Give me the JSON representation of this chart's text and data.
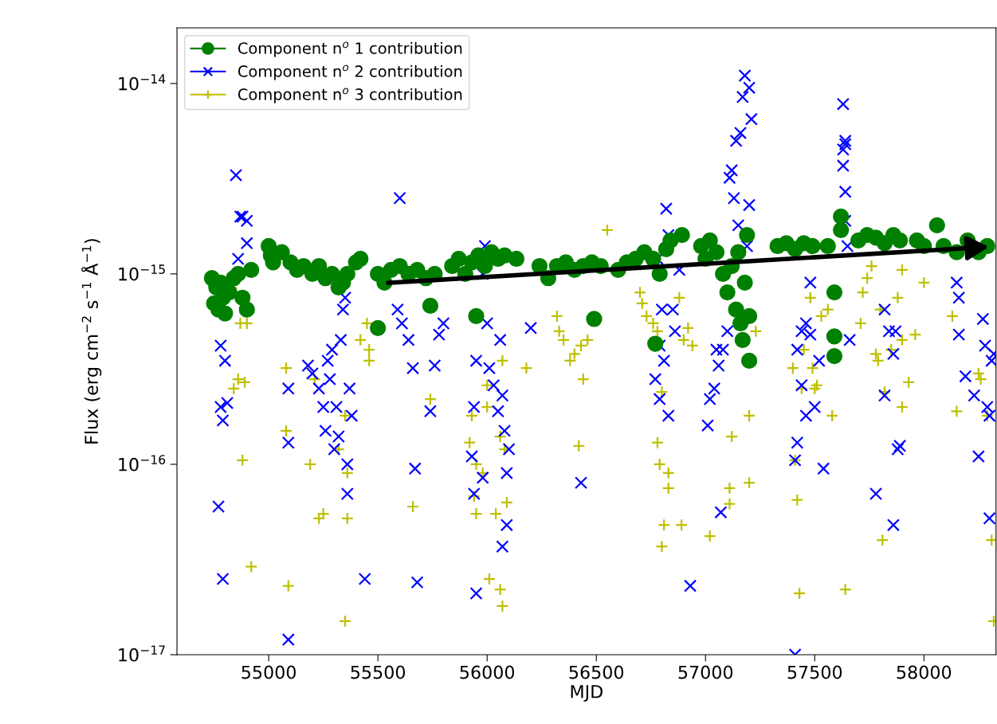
{
  "chart_data": {
    "type": "scatter",
    "xlabel": "MJD",
    "ylabel": "Flux (erg cm$^{−2}$ s$^{−1}$ Å$^{−1}$)",
    "log": "y",
    "legend": "top left",
    "grid": false,
    "xlim": [
      54580,
      58330
    ],
    "ylim": [
      1e-17,
      1.96e-14
    ],
    "xticks": [
      55000,
      55500,
      56000,
      56500,
      57000,
      57500,
      58000
    ],
    "yticks": [
      {
        "value": 1e-17,
        "label": "10$^{−17}$"
      },
      {
        "value": 1e-16,
        "label": "10$^{−16}$"
      },
      {
        "value": 1e-15,
        "label": "10$^{−15}$"
      },
      {
        "value": 1e-14,
        "label": "10$^{−14}$"
      }
    ],
    "series": [
      {
        "name": "Component n$^{o}$ 1 contribution",
        "color": "#008000",
        "marker": "circle",
        "x": [
          54740,
          54750,
          54760,
          54770,
          54780,
          54790,
          54800,
          54820,
          54840,
          54860,
          54880,
          54900,
          54920,
          55000,
          55010,
          55020,
          55060,
          55100,
          55130,
          55160,
          55200,
          55230,
          55260,
          55290,
          55320,
          55340,
          55360,
          55400,
          55420,
          55500,
          55530,
          55560,
          55600,
          55640,
          55680,
          55720,
          55760,
          55500,
          55740,
          55840,
          55870,
          55900,
          55930,
          55960,
          55990,
          56020,
          56050,
          56080,
          55950,
          56134,
          56240,
          56280,
          56320,
          56360,
          56400,
          56440,
          56480,
          56520,
          56490,
          56600,
          56640,
          56680,
          56720,
          56760,
          56790,
          56820,
          56840,
          56770,
          56892,
          56980,
          57000,
          57020,
          57050,
          57080,
          57100,
          57120,
          57140,
          57150,
          57160,
          57170,
          57180,
          57190,
          57200,
          57200,
          57330,
          57370,
          57410,
          57450,
          57490,
          57560,
          57620,
          57620,
          57590,
          57590,
          57590,
          57700,
          57740,
          57780,
          57820,
          57860,
          57890,
          57968,
          58000,
          58060,
          58090,
          58150,
          58200,
          58250,
          58290
        ],
        "values": [
          9.5e-16,
          7e-16,
          8.5e-16,
          6.5e-16,
          9e-16,
          7.5e-16,
          6.2e-16,
          8e-16,
          9.5e-16,
          1e-15,
          7.5e-16,
          6.5e-16,
          1.05e-15,
          1.4e-15,
          1.25e-15,
          1.15e-15,
          1.3e-15,
          1.15e-15,
          1.05e-15,
          1.1e-15,
          1e-15,
          1.1e-15,
          9.5e-16,
          1e-15,
          8.5e-16,
          9e-16,
          1e-15,
          1.15e-15,
          1.2e-15,
          1e-15,
          9e-16,
          1.05e-15,
          1.1e-15,
          1e-15,
          1.05e-15,
          9.5e-16,
          1e-15,
          5.2e-16,
          6.8e-16,
          1.1e-15,
          1.2e-15,
          1e-15,
          1.15e-15,
          1.25e-15,
          1.1e-15,
          1.3e-15,
          1.2e-15,
          1.25e-15,
          6e-16,
          1.2e-15,
          1.1e-15,
          9.5e-16,
          1.1e-15,
          1.15e-15,
          1.05e-15,
          1.1e-15,
          1.15e-15,
          1.1e-15,
          5.8e-16,
          1.05e-15,
          1.15e-15,
          1.2e-15,
          1.3e-15,
          1.2e-15,
          1e-15,
          1.35e-15,
          1.5e-15,
          4.3e-16,
          1.6e-15,
          1.4e-15,
          1.2e-15,
          1.5e-15,
          1.3e-15,
          1e-15,
          8e-16,
          1.1e-15,
          6.5e-16,
          1.3e-15,
          5.5e-16,
          4.5e-16,
          9e-16,
          1.6e-15,
          3.5e-16,
          6e-16,
          1.4e-15,
          1.45e-15,
          1.35e-15,
          1.45e-15,
          1.4e-15,
          1.4e-15,
          1.7e-15,
          2e-15,
          8e-16,
          4.7e-16,
          3.7e-16,
          1.5e-15,
          1.6e-15,
          1.55e-15,
          1.45e-15,
          1.6e-15,
          1.5e-15,
          1.5e-15,
          1.4e-15,
          1.8e-15,
          1.4e-15,
          1.3e-15,
          1.5e-15,
          1.3e-15,
          1.4e-15
        ]
      },
      {
        "name": "Component n$^{o}$ 2 contribution",
        "color": "#0000ff",
        "marker": "cross",
        "x": [
          54850,
          54870,
          54880,
          54900,
          54900,
          54860,
          54800,
          54780,
          54780,
          54790,
          54810,
          54770,
          54790,
          55090,
          55090,
          55090,
          55180,
          55200,
          55230,
          55250,
          55260,
          55270,
          55290,
          55300,
          55280,
          55310,
          55320,
          55330,
          55340,
          55350,
          55360,
          55360,
          55370,
          55380,
          55440,
          55600,
          55590,
          55610,
          55640,
          55660,
          55670,
          55680,
          55740,
          55760,
          55780,
          55800,
          55990,
          55980,
          55950,
          55940,
          55930,
          55940,
          55950,
          56000,
          56010,
          56030,
          56060,
          56070,
          56080,
          56090,
          56100,
          56090,
          56070,
          55980,
          56050,
          56200,
          56430,
          56820,
          56830,
          56780,
          56800,
          56790,
          56810,
          56770,
          56790,
          56830,
          56850,
          56860,
          56880,
          56930,
          57180,
          57200,
          57170,
          57160,
          57140,
          57120,
          57110,
          57130,
          57210,
          57200,
          57150,
          57190,
          57050,
          57060,
          57040,
          57020,
          57010,
          57100,
          57080,
          57070,
          57410,
          57480,
          57460,
          57440,
          57420,
          57440,
          57460,
          57420,
          57410,
          57500,
          57520,
          57540,
          57480,
          57630,
          57640,
          57640,
          57630,
          57630,
          57640,
          57640,
          57650,
          57660,
          57780,
          57820,
          57840,
          57860,
          57820,
          57860,
          57880,
          57890,
          57870,
          58150,
          58160,
          58160,
          58190,
          58230,
          58250,
          58270,
          58280,
          58290,
          58300,
          58310,
          58300,
          58320
        ],
        "values": [
          3.3e-15,
          2e-15,
          2e-15,
          1.9e-15,
          1.45e-15,
          1.2e-15,
          3.5e-16,
          4.2e-16,
          2e-16,
          1.7e-16,
          2.1e-16,
          6e-17,
          2.5e-17,
          2.5e-16,
          1.3e-16,
          1.2e-17,
          3.3e-16,
          3e-16,
          2.5e-16,
          2e-16,
          1.5e-16,
          3.5e-16,
          4e-16,
          1.2e-16,
          2.8e-16,
          2e-16,
          1.4e-16,
          4.5e-16,
          6.5e-16,
          7.5e-16,
          1e-16,
          7e-17,
          2.5e-16,
          1.8e-16,
          2.5e-17,
          2.5e-15,
          6.5e-16,
          5.5e-16,
          4.5e-16,
          3.2e-16,
          9.5e-17,
          2.4e-17,
          1.9e-16,
          3.3e-16,
          4.8e-16,
          5.5e-16,
          1.4e-15,
          1e-15,
          3.5e-16,
          2e-16,
          1.1e-16,
          7e-17,
          2.1e-17,
          5.5e-16,
          3.2e-16,
          2.6e-16,
          4.5e-16,
          2.3e-16,
          1.5e-16,
          9e-17,
          1.2e-16,
          4.8e-17,
          3.7e-17,
          8.5e-17,
          1.9e-16,
          5.2e-16,
          8e-17,
          2.2e-15,
          1.6e-15,
          1.2e-15,
          6.5e-16,
          4.2e-16,
          3.5e-16,
          2.8e-16,
          2.2e-16,
          1.8e-16,
          6.5e-16,
          5e-16,
          1.05e-15,
          2.3e-17,
          1.1e-14,
          9.5e-15,
          8.5e-15,
          5.5e-15,
          5e-15,
          3.5e-15,
          3.2e-15,
          2.5e-15,
          6.5e-15,
          2.3e-15,
          1.8e-15,
          1.4e-15,
          4e-16,
          3.3e-16,
          2.5e-16,
          2.2e-16,
          1.6e-16,
          5e-16,
          4e-16,
          5.6e-17,
          1e-17,
          9e-16,
          5.5e-16,
          5e-16,
          4e-16,
          2.6e-16,
          1.8e-16,
          1.3e-16,
          1.05e-16,
          2e-16,
          3.5e-16,
          9.5e-17,
          4.8e-16,
          7.8e-15,
          5e-15,
          4.8e-15,
          4.5e-15,
          3.7e-15,
          2.7e-15,
          1.9e-15,
          1.4e-15,
          4.5e-16,
          7e-17,
          6.5e-16,
          5e-16,
          3.8e-16,
          2.3e-16,
          4.8e-17,
          1.2e-16,
          1.25e-16,
          5e-16,
          9e-16,
          7.5e-16,
          4.8e-16,
          2.9e-16,
          2.3e-16,
          1.1e-16,
          5.8e-16,
          4.2e-16,
          2e-16,
          1.8e-16,
          3.5e-16,
          5.2e-17,
          3.8e-16
        ]
      },
      {
        "name": "Component n$^{o}$ 3 contribution",
        "color": "#bfbf00",
        "marker": "plus",
        "x": [
          54850,
          54870,
          54900,
          54860,
          54840,
          54890,
          54880,
          54920,
          55080,
          55080,
          55090,
          55190,
          55230,
          55250,
          55210,
          55320,
          55350,
          55360,
          55360,
          55350,
          55420,
          55450,
          55460,
          55460,
          55740,
          55660,
          55920,
          55930,
          55950,
          55940,
          55950,
          55980,
          56000,
          56010,
          56040,
          56060,
          56070,
          56060,
          56080,
          56090,
          56070,
          56000,
          56180,
          56320,
          56330,
          56350,
          56380,
          56400,
          56430,
          56440,
          56460,
          56420,
          56550,
          56700,
          56710,
          56730,
          56780,
          56760,
          56800,
          56780,
          56790,
          56800,
          56810,
          56830,
          56830,
          56880,
          56900,
          56890,
          56920,
          56940,
          57020,
          57110,
          57110,
          57120,
          57200,
          57200,
          57230,
          57400,
          57410,
          57420,
          57430,
          57440,
          57450,
          57480,
          57490,
          57510,
          57530,
          57560,
          57580,
          57640,
          57500,
          57710,
          57720,
          57740,
          57760,
          57780,
          57790,
          57800,
          57810,
          57820,
          57850,
          57880,
          57900,
          57900,
          57960,
          57930,
          57900,
          58000,
          58130,
          58150,
          58260,
          58290,
          58310,
          58320,
          58250
        ],
        "values": [
          8e-16,
          5.5e-16,
          5.5e-16,
          2.8e-16,
          2.5e-16,
          2.7e-16,
          1.05e-16,
          2.9e-17,
          3.2e-16,
          1.5e-16,
          2.3e-17,
          1e-16,
          5.2e-17,
          5.5e-17,
          2.8e-16,
          1.2e-16,
          1.8e-16,
          9e-17,
          5.2e-17,
          1.5e-17,
          4.5e-16,
          5.5e-16,
          4e-16,
          3.5e-16,
          2.2e-16,
          6e-17,
          1.3e-16,
          1.8e-16,
          1e-16,
          6.8e-17,
          5.5e-17,
          9e-17,
          2e-16,
          2.5e-17,
          5.5e-17,
          2.2e-17,
          1.8e-17,
          1.4e-16,
          1.2e-16,
          6.3e-17,
          3.5e-16,
          2.6e-16,
          3.2e-16,
          6e-16,
          5e-16,
          4.5e-16,
          3.5e-16,
          3.8e-16,
          4.2e-16,
          2.8e-16,
          4.5e-16,
          1.25e-16,
          1.7e-15,
          8e-16,
          7e-16,
          6e-16,
          5e-16,
          5.5e-16,
          2.4e-16,
          1.3e-16,
          1e-16,
          3.7e-17,
          4.8e-17,
          9e-17,
          7.5e-17,
          7.5e-16,
          4.5e-16,
          4.8e-17,
          5.2e-16,
          4.2e-16,
          4.2e-17,
          6.2e-17,
          7.5e-17,
          1.4e-16,
          1.8e-16,
          8e-17,
          5e-16,
          3.2e-16,
          1.05e-16,
          6.5e-17,
          2.1e-17,
          2.5e-16,
          4e-16,
          7.5e-16,
          3.2e-16,
          2.6e-16,
          6e-16,
          6.5e-16,
          1.8e-16,
          2.2e-17,
          2.5e-16,
          5.5e-16,
          8e-16,
          9.5e-16,
          1.1e-15,
          3.8e-16,
          3.5e-16,
          6.5e-16,
          4e-17,
          2.4e-16,
          4e-16,
          7.5e-16,
          4.5e-16,
          1.05e-15,
          4.8e-16,
          2.7e-16,
          2e-16,
          9e-16,
          6e-16,
          1.9e-16,
          2.8e-16,
          1.8e-16,
          4e-17,
          1.5e-17,
          3e-16
        ]
      }
    ]
  }
}
